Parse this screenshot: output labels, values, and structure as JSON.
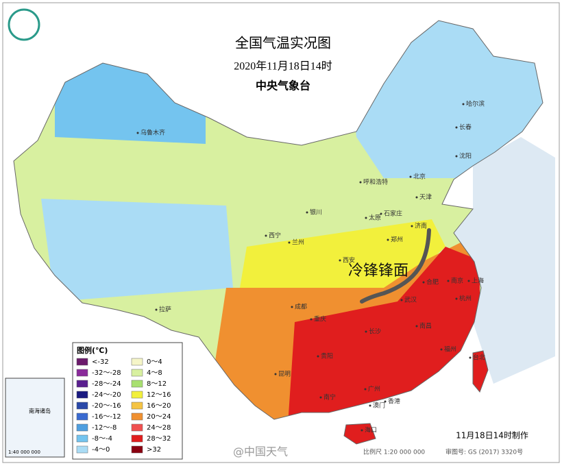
{
  "header": {
    "title": "全国气温实况图",
    "datetime": "2020年11月18日14时",
    "agency": "中央气象台"
  },
  "legend": {
    "title": "图例(℃)",
    "items": [
      {
        "label": "<-32",
        "color": "#6b1a6b"
      },
      {
        "label": "-32～-28",
        "color": "#8a2a9a"
      },
      {
        "label": "-28～-24",
        "color": "#5a1f8f"
      },
      {
        "label": "-24～-20",
        "color": "#1a1a80"
      },
      {
        "label": "-20～-16",
        "color": "#2a48a8"
      },
      {
        "label": "-16～-12",
        "color": "#3a6ad0"
      },
      {
        "label": "-12～-8",
        "color": "#4f9fe0"
      },
      {
        "label": "-8～-4",
        "color": "#74c4ef"
      },
      {
        "label": "-4～0",
        "color": "#aadcf5"
      },
      {
        "label": "0～4",
        "color": "#f5f5c8"
      },
      {
        "label": "4～8",
        "color": "#d8f0a0"
      },
      {
        "label": "8～12",
        "color": "#a8e070"
      },
      {
        "label": "12～16",
        "color": "#f2f03c"
      },
      {
        "label": "16～20",
        "color": "#f5c444"
      },
      {
        "label": "20～24",
        "color": "#f09030"
      },
      {
        "label": "24～28",
        "color": "#f05050"
      },
      {
        "label": "28～32",
        "color": "#e01e1e"
      },
      {
        "label": ">32",
        "color": "#8a0010"
      }
    ]
  },
  "annotation": "冷锋锋面",
  "cities": [
    "乌鲁木齐",
    "哈尔滨",
    "长春",
    "沈阳",
    "呼和浩特",
    "北京",
    "天津",
    "石家庄",
    "太原",
    "银川",
    "济南",
    "西宁",
    "兰州",
    "郑州",
    "西安",
    "合肥",
    "南京",
    "上海",
    "杭州",
    "武汉",
    "成都",
    "重庆",
    "拉萨",
    "长沙",
    "南昌",
    "福州",
    "台北",
    "贵阳",
    "昆明",
    "南宁",
    "广州",
    "香港",
    "澳门",
    "海口"
  ],
  "inset": {
    "name": "南海诸岛",
    "scale": "1:40 000 000"
  },
  "footer": {
    "made": "11月18日14时制作",
    "scale": "比例尺 1:20 000 000",
    "approval": "审图号: GS (2017) 3320号",
    "watermark": "@中国天气"
  }
}
